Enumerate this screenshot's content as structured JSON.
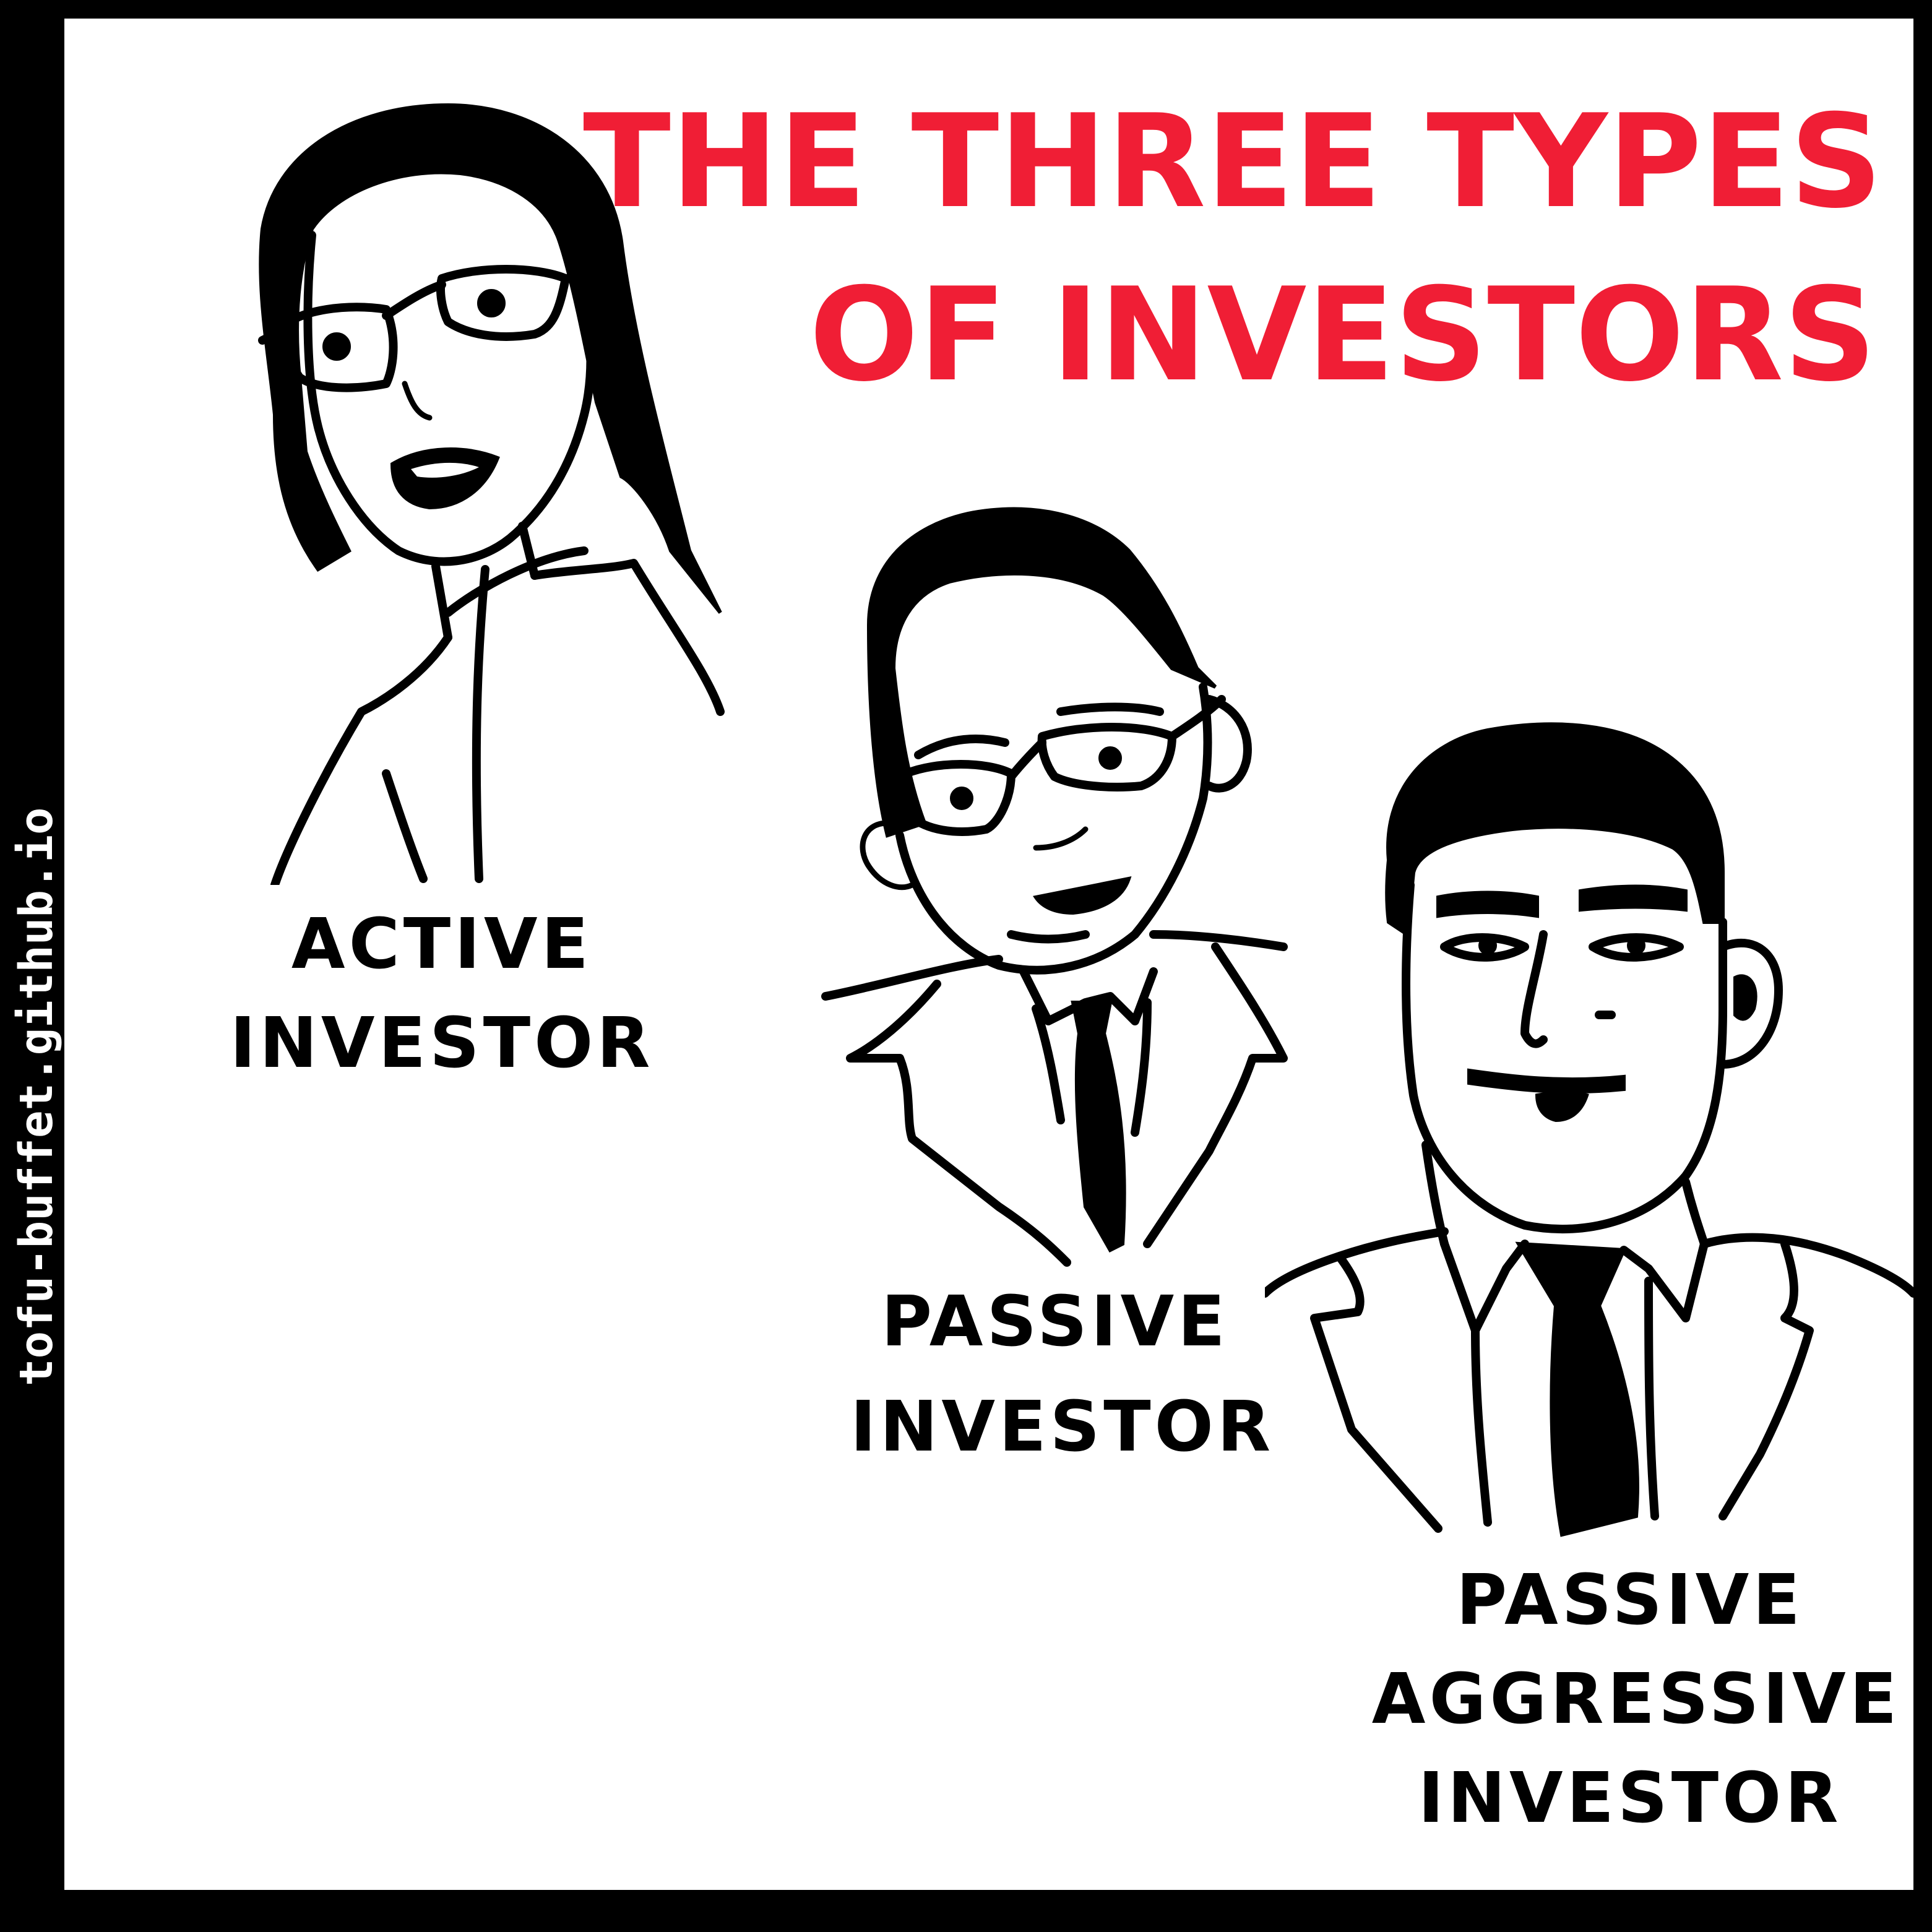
{
  "credit": "tofu-buffet.github.io",
  "title": {
    "line1": "THE THREE TYPES",
    "line2": "OF INVESTORS"
  },
  "captions": {
    "active": {
      "line1": "ACTIVE",
      "line2": "INVESTOR"
    },
    "passive": {
      "line1": "PASSIVE",
      "line2": "INVESTOR"
    },
    "passive_aggressive": {
      "line1": "PASSIVE",
      "line2": "AGGRESSIVE",
      "line3": "INVESTOR"
    }
  },
  "colors": {
    "title": "#f01e35",
    "border": "#000000",
    "ink": "#000000",
    "background": "#ffffff"
  }
}
